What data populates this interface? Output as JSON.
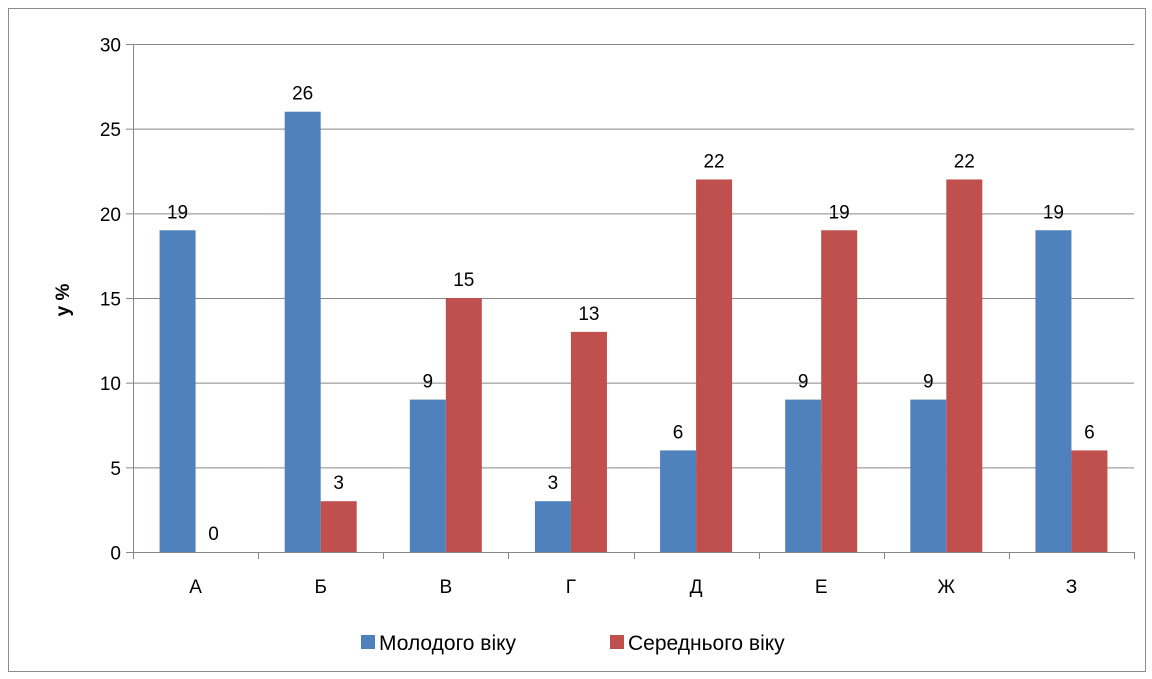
{
  "chart_data": {
    "type": "bar",
    "title": "",
    "xlabel": "",
    "ylabel": "у %",
    "ylim": [
      0,
      30
    ],
    "yticks": [
      0,
      5,
      10,
      15,
      20,
      25,
      30
    ],
    "categories": [
      "А",
      "Б",
      "В",
      "Г",
      "Д",
      "Е",
      "Ж",
      "З"
    ],
    "series": [
      {
        "name": "Молодого віку",
        "color": "#4f81bd",
        "values": [
          19,
          26,
          9,
          3,
          6,
          9,
          9,
          19
        ]
      },
      {
        "name": "Середнього віку",
        "color": "#c0504d",
        "values": [
          0,
          3,
          15,
          13,
          22,
          19,
          22,
          6
        ]
      }
    ],
    "grid": true,
    "legend_position": "bottom",
    "data_labels": true
  }
}
